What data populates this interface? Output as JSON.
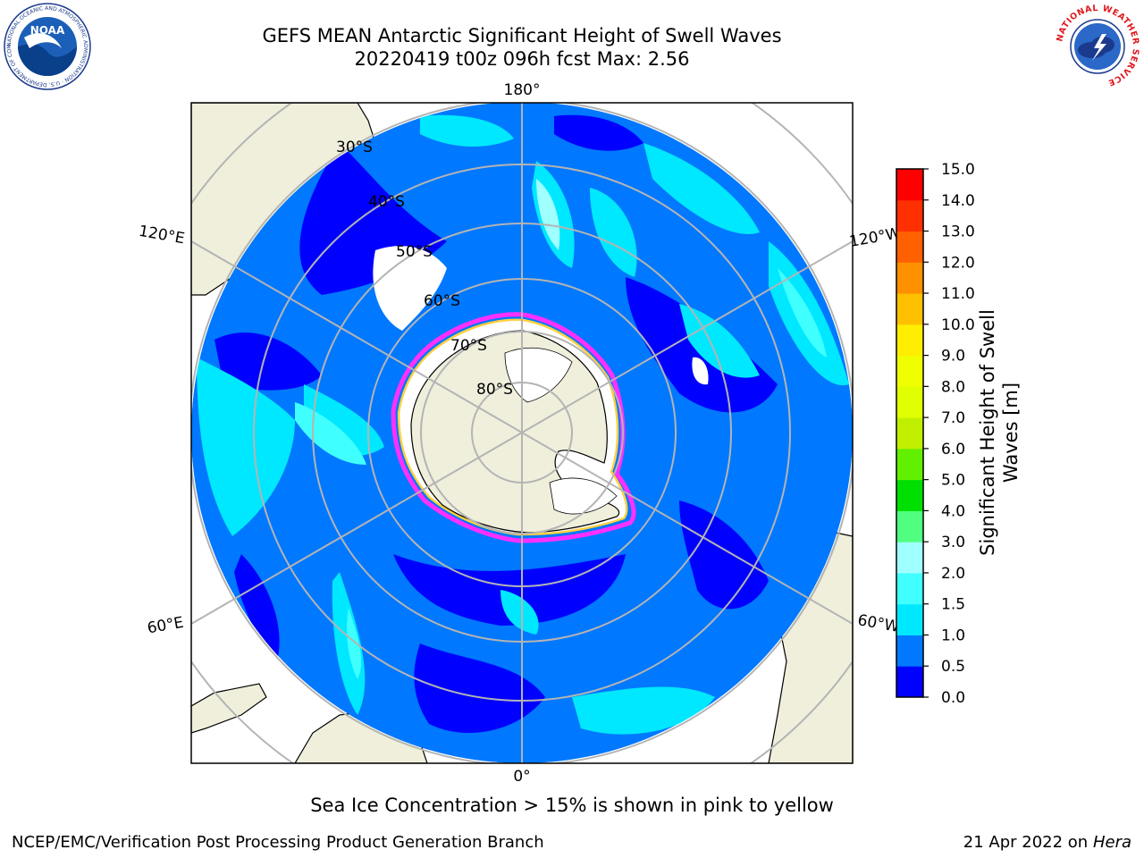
{
  "header": {
    "title_line1": "GEFS MEAN Antarctic Significant Height of Swell Waves",
    "title_line2": "20220419 t00z 096h fcst   Max: 2.56"
  },
  "logos": {
    "left": {
      "icon": "noaa-logo",
      "text": "NOAA",
      "ring_text": "NATIONAL OCEANIC AND ATMOSPHERIC ADMINISTRATION · U.S. DEPARTMENT OF COMMERCE"
    },
    "right": {
      "icon": "national-weather-service-logo",
      "ring_text": "NATIONAL WEATHER SERVICE"
    }
  },
  "map": {
    "projection": "south-polar-stereographic",
    "longitude_labels": [
      "180°",
      "120°E",
      "120°W",
      "60°E",
      "60°W",
      "0°"
    ],
    "latitude_labels": [
      "30°S",
      "40°S",
      "50°S",
      "60°S",
      "70°S",
      "80°S"
    ],
    "colors": {
      "land": "#efefdc",
      "ice_free_no_data": "#ffffff",
      "coastline": "#000000",
      "gridlines": "#b4b4b4",
      "sea_ice_edge": [
        "#ff30ff",
        "#ffd040"
      ]
    }
  },
  "colorbar": {
    "label": "Significant Height of Swell Waves [m]",
    "ticks": [
      "15.0",
      "14.0",
      "13.0",
      "12.0",
      "11.0",
      "10.0",
      "9.0",
      "8.0",
      "7.0",
      "6.0",
      "5.0",
      "4.0",
      "3.0",
      "2.0",
      "1.5",
      "1.0",
      "0.5",
      "0.0"
    ],
    "bins": [
      {
        "from": 0.0,
        "to": 0.5,
        "color": "#0000ff"
      },
      {
        "from": 0.5,
        "to": 1.0,
        "color": "#0078ff"
      },
      {
        "from": 1.0,
        "to": 1.5,
        "color": "#00e8ff"
      },
      {
        "from": 1.5,
        "to": 2.0,
        "color": "#40ffff"
      },
      {
        "from": 2.0,
        "to": 3.0,
        "color": "#a0ffff"
      },
      {
        "from": 3.0,
        "to": 4.0,
        "color": "#50ff80"
      },
      {
        "from": 4.0,
        "to": 5.0,
        "color": "#00e000"
      },
      {
        "from": 5.0,
        "to": 6.0,
        "color": "#60f000"
      },
      {
        "from": 6.0,
        "to": 7.0,
        "color": "#c0f000"
      },
      {
        "from": 7.0,
        "to": 8.0,
        "color": "#e0ff00"
      },
      {
        "from": 8.0,
        "to": 9.0,
        "color": "#f0ff00"
      },
      {
        "from": 9.0,
        "to": 10.0,
        "color": "#ffee00"
      },
      {
        "from": 10.0,
        "to": 11.0,
        "color": "#ffc000"
      },
      {
        "from": 11.0,
        "to": 12.0,
        "color": "#ff9000"
      },
      {
        "from": 12.0,
        "to": 13.0,
        "color": "#ff6000"
      },
      {
        "from": 13.0,
        "to": 14.0,
        "color": "#ff3000"
      },
      {
        "from": 14.0,
        "to": 15.0,
        "color": "#ff0000"
      }
    ]
  },
  "caption": "Sea Ice Concentration > 15% is shown in pink to yellow",
  "footer": {
    "left": "NCEP/EMC/Verification Post Processing Product Generation Branch",
    "right_prefix": "21 Apr 2022 on ",
    "right_machine": "Hera"
  }
}
